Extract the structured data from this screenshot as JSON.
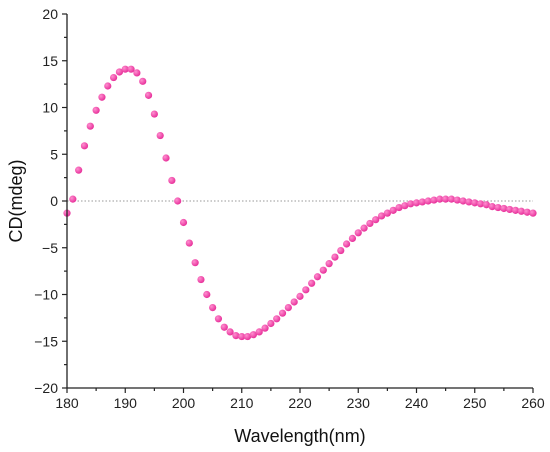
{
  "chart_data": {
    "type": "scatter",
    "title": "",
    "xlabel": "Wavelength(nm)",
    "ylabel": "CD(mdeg)",
    "xlim": [
      180,
      260
    ],
    "ylim": [
      -20,
      20
    ],
    "x_ticks": [
      180,
      190,
      200,
      210,
      220,
      230,
      240,
      250,
      260
    ],
    "y_ticks": [
      -20,
      -15,
      -10,
      -5,
      0,
      5,
      10,
      15,
      20
    ],
    "x_tick_labels": [
      "180",
      "190",
      "200",
      "210",
      "220",
      "230",
      "240",
      "250",
      "260"
    ],
    "y_tick_labels": [
      "−20",
      "−15",
      "−10",
      "−5",
      "0",
      "5",
      "10",
      "15",
      "20"
    ],
    "grid": false,
    "zero_reference_line": true,
    "marker_color": "#e8329b",
    "marker_highlight": "#ff8fd0",
    "series": [
      {
        "x": [
          180,
          181,
          182,
          183,
          184,
          185,
          186,
          187,
          188,
          189,
          190,
          191,
          192,
          193,
          194,
          195,
          196,
          197,
          198,
          199,
          200,
          201,
          202,
          203,
          204,
          205,
          206,
          207,
          208,
          209,
          210,
          211,
          212,
          213,
          214,
          215,
          216,
          217,
          218,
          219,
          220,
          221,
          222,
          223,
          224,
          225,
          226,
          227,
          228,
          229,
          230,
          231,
          232,
          233,
          234,
          235,
          236,
          237,
          238,
          239,
          240,
          241,
          242,
          243,
          244,
          245,
          246,
          247,
          248,
          249,
          250,
          251,
          252,
          253,
          254,
          255,
          256,
          257,
          258,
          259,
          260
        ],
        "y": [
          -1.3,
          0.2,
          3.3,
          5.9,
          8.0,
          9.7,
          11.1,
          12.3,
          13.2,
          13.8,
          14.1,
          14.1,
          13.7,
          12.8,
          11.3,
          9.3,
          7.0,
          4.6,
          2.2,
          0.0,
          -2.3,
          -4.5,
          -6.6,
          -8.4,
          -10.0,
          -11.4,
          -12.6,
          -13.5,
          -14.0,
          -14.4,
          -14.5,
          -14.5,
          -14.3,
          -14.0,
          -13.6,
          -13.1,
          -12.6,
          -12.0,
          -11.4,
          -10.8,
          -10.2,
          -9.5,
          -8.8,
          -8.1,
          -7.4,
          -6.7,
          -6.0,
          -5.3,
          -4.6,
          -4.0,
          -3.4,
          -2.9,
          -2.4,
          -2.0,
          -1.6,
          -1.3,
          -1.0,
          -0.7,
          -0.5,
          -0.3,
          -0.2,
          -0.1,
          0.0,
          0.1,
          0.2,
          0.2,
          0.2,
          0.1,
          0.0,
          -0.1,
          -0.2,
          -0.3,
          -0.4,
          -0.6,
          -0.7,
          -0.8,
          -0.9,
          -1.0,
          -1.1,
          -1.2,
          -1.3
        ]
      }
    ]
  }
}
